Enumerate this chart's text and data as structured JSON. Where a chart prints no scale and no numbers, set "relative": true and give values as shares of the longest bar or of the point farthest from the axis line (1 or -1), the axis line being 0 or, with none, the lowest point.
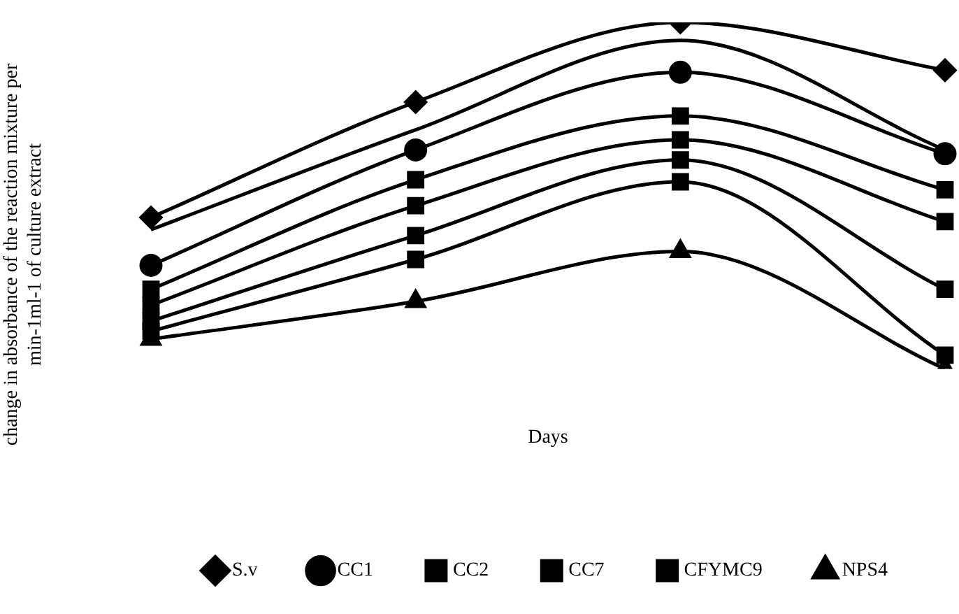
{
  "chart_data": {
    "type": "line",
    "relative": true,
    "xlabel": "Days",
    "ylabel": "change in absorbance of the reaction mixture per min-1ml-1 of culture extract",
    "categories": [
      null,
      null,
      null,
      null
    ],
    "legend": "bottom",
    "grid": false,
    "series": [
      {
        "name": "S.v",
        "color": "#000000",
        "marker": "diamond",
        "values": [
          0.437,
          0.77,
          1,
          0.862
        ]
      },
      {
        "color": "#000000",
        "marker": "none",
        "values": [
          0.402,
          0.69,
          0.948,
          0.632
        ]
      },
      {
        "name": "CC1",
        "color": "#000000",
        "marker": "circle",
        "values": [
          0.299,
          0.632,
          0.856,
          0.621
        ]
      },
      {
        "name": "CC2",
        "color": "#000000",
        "marker": "square",
        "values": [
          0.23,
          0.546,
          0.73,
          0.517
        ]
      },
      {
        "name": "CC7",
        "color": "#000000",
        "marker": "square",
        "values": [
          0.184,
          0.471,
          0.661,
          0.425
        ]
      },
      {
        "name": "CFYMC9",
        "color": "#000000",
        "marker": "square",
        "values": [
          0.138,
          0.385,
          0.603,
          0.23
        ]
      },
      {
        "color": "#000000",
        "marker": "square",
        "values": [
          0.109,
          0.316,
          0.54,
          0.04
        ]
      },
      {
        "name": "NPS4",
        "color": "#000000",
        "marker": "triangle",
        "values": [
          0.086,
          0.195,
          0.339,
          0
        ]
      }
    ]
  }
}
